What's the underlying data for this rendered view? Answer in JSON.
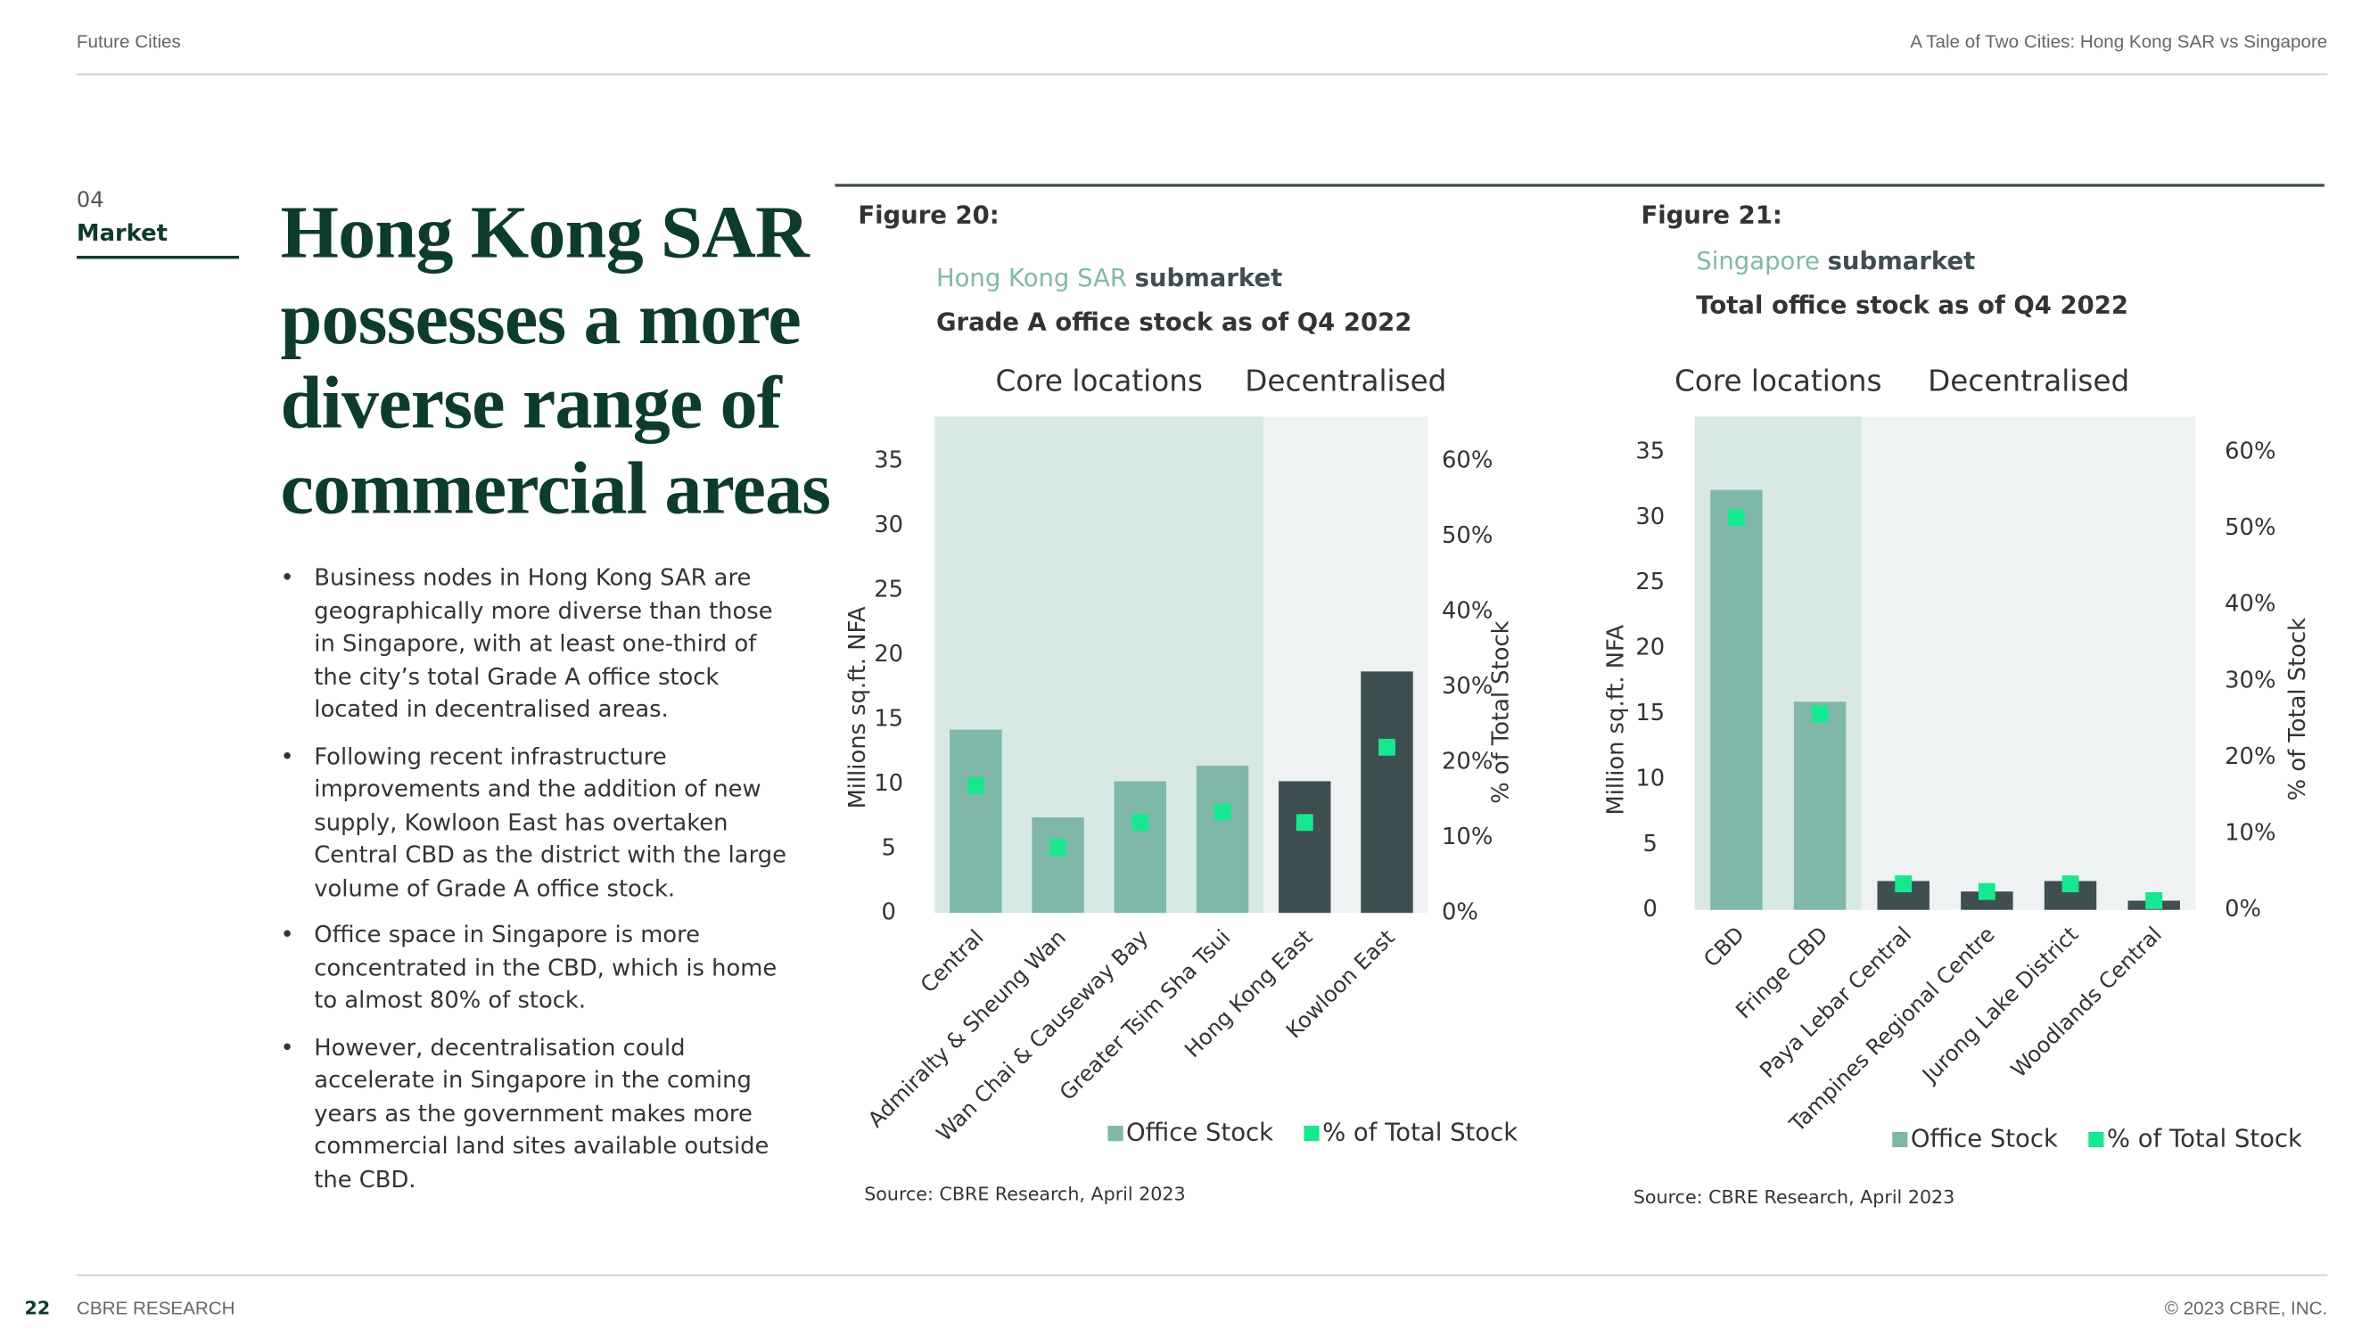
{
  "header": {
    "left": "Future Cities",
    "right": "A Tale of Two Cities: Hong Kong SAR vs Singapore"
  },
  "section": {
    "number": "04",
    "name": "Market"
  },
  "heading": [
    "Hong Kong SAR",
    "possesses a more",
    "diverse range of",
    "commercial areas"
  ],
  "bullets": [
    "Business nodes in Hong Kong SAR are geographically more diverse than those in Singapore, with at least one-third of the city’s total Grade A office stock located in decentralised areas.",
    "Following recent infrastructure improvements and the addition of new supply, Kowloon East has overtaken Central CBD as the district with the large volume of Grade A office stock.",
    "Office space in Singapore is more concentrated in the CBD, which is home to almost 80% of stock.",
    "However, decentralisation could accelerate in Singapore in the coming years as the government makes more commercial land sites available outside the CBD."
  ],
  "chart_data": [
    {
      "type": "bar",
      "title": "Figure 20:",
      "subtitle_highlight": "Hong Kong SAR",
      "subtitle": "submarket",
      "subtitle2": "Grade A office stock as of Q4 2022",
      "categories": [
        "Central",
        "Admiralty & Sheung Wan",
        "Wan Chai & Causeway Bay",
        "Greater Tsim Sha Tsui",
        "Hong Kong East",
        "Kowloon East"
      ],
      "regions": [
        {
          "label": "Core locations",
          "count": 4,
          "color": "#d8e9e5",
          "label_color": "#7fb8a8"
        },
        {
          "label": "Decentralised",
          "count": 2,
          "color": "#eef2f2",
          "label_color": "#3f4e50"
        }
      ],
      "series": [
        {
          "name": "Office Stock",
          "colors": [
            "#7fb8a8",
            "#7fb8a8",
            "#7fb8a8",
            "#7fb8a8",
            "#3f4e50",
            "#3f4e50"
          ],
          "values": [
            14.2,
            7.4,
            10.2,
            11.4,
            10.2,
            18.7
          ]
        },
        {
          "name": "% of Total Stock",
          "color": "#17e88f",
          "axis": "y2",
          "values": [
            16.9,
            8.7,
            12.0,
            13.4,
            12.0,
            22.0
          ]
        }
      ],
      "ylim": [
        0,
        35
      ],
      "yticks": [
        0,
        5,
        10,
        15,
        20,
        25,
        30,
        35
      ],
      "y2lim": [
        0,
        60
      ],
      "y2ticks": [
        {
          "value": 0,
          "label": "0%"
        },
        {
          "value": 10,
          "label": "10%"
        },
        {
          "value": 20,
          "label": "20%"
        },
        {
          "value": 30,
          "label": "30%"
        },
        {
          "value": 40,
          "label": "40%"
        },
        {
          "value": 50,
          "label": "50%"
        },
        {
          "value": 60,
          "label": "60%"
        }
      ],
      "ylabel": "Millions sq.ft. NFA",
      "y2label": "% of Total Stock",
      "source": "Source: CBRE Research, April 2023"
    },
    {
      "type": "bar",
      "title": "Figure 21:",
      "subtitle_highlight": "Singapore",
      "subtitle": "submarket",
      "subtitle2": "Total office stock as of Q4 2022",
      "categories": [
        "CBD",
        "Fringe CBD",
        "Paya Lebar Central",
        "Tampines Regional Centre",
        "Jurong Lake District",
        "Woodlands Central"
      ],
      "regions": [
        {
          "label": "Core locations",
          "count": 2,
          "color": "#d8e9e5",
          "label_color": "#7fb8a8"
        },
        {
          "label": "Decentralised",
          "count": 4,
          "color": "#eef2f2",
          "label_color": "#3f4e50"
        }
      ],
      "series": [
        {
          "name": "Office Stock",
          "colors": [
            "#7fb8a8",
            "#7fb8a8",
            "#3f4e50",
            "#3f4e50",
            "#3f4e50",
            "#3f4e50"
          ],
          "values": [
            32.1,
            15.9,
            2.2,
            1.4,
            2.2,
            0.7
          ]
        },
        {
          "name": "% of Total Stock",
          "color": "#17e88f",
          "axis": "y2",
          "values": [
            51.4,
            25.7,
            3.4,
            2.4,
            3.4,
            1.2
          ]
        }
      ],
      "ylim": [
        0,
        35
      ],
      "yticks": [
        0,
        5,
        10,
        15,
        20,
        25,
        30,
        35
      ],
      "y2lim": [
        0,
        60
      ],
      "y2ticks": [
        {
          "value": 0,
          "label": "0%"
        },
        {
          "value": 10,
          "label": "10%"
        },
        {
          "value": 20,
          "label": "20%"
        },
        {
          "value": 30,
          "label": "30%"
        },
        {
          "value": 40,
          "label": "40%"
        },
        {
          "value": 50,
          "label": "50%"
        },
        {
          "value": 60,
          "label": "60%"
        }
      ],
      "ylabel": "Million sq.ft. NFA",
      "y2label": "% of Total Stock",
      "source": "Source: CBRE Research, April 2023"
    }
  ],
  "footer": {
    "page": "22",
    "left": "CBRE RESEARCH",
    "right": "© 2023 CBRE, INC."
  }
}
